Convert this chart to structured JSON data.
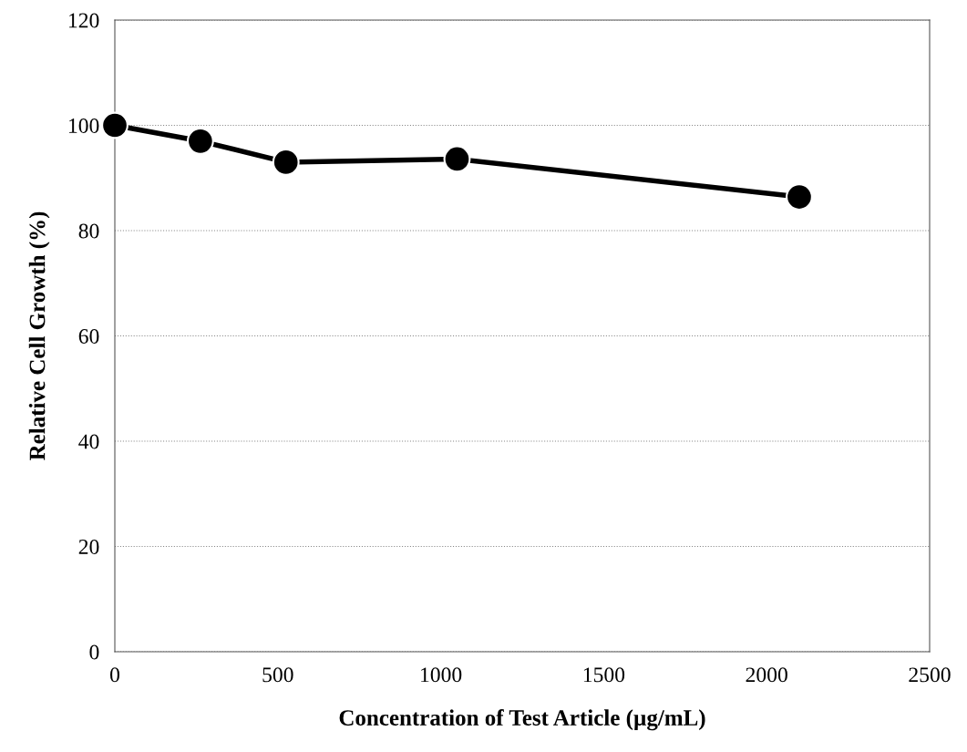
{
  "chart_data": {
    "type": "line",
    "xlabel": "Concentration of Test Article (µg/mL)",
    "ylabel": "Relative Cell Growth (%)",
    "x": [
      0,
      262.5,
      525,
      1050,
      2100
    ],
    "series": [
      {
        "color": "#000000",
        "values": [
          100,
          97,
          93.0,
          93.6,
          86.4
        ]
      }
    ],
    "xlim": [
      0,
      2500
    ],
    "xticks": [
      0,
      500,
      1000,
      1500,
      2000,
      2500
    ],
    "ylim": [
      0,
      120
    ],
    "yticks": [
      0,
      20,
      40,
      60,
      80,
      100,
      120
    ],
    "grid": "y",
    "marker": "circle",
    "line_style": "solid",
    "legend": false
  }
}
